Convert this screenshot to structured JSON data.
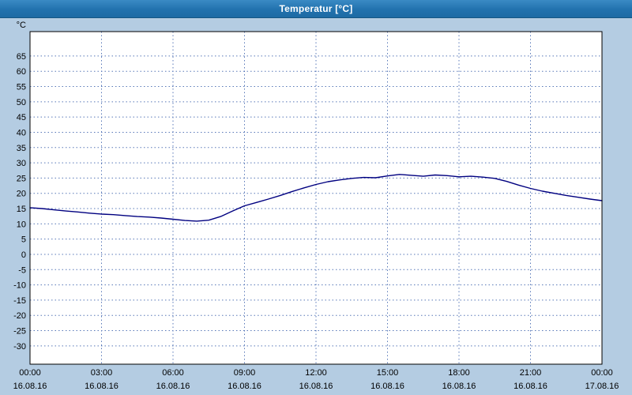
{
  "chart_data": {
    "type": "line",
    "title": "Temperatur [°C]",
    "y_unit": "°C",
    "ylim": [
      -36,
      73
    ],
    "xlim": [
      0,
      24
    ],
    "grid": true,
    "y_ticks": [
      65,
      60,
      55,
      50,
      45,
      40,
      35,
      30,
      25,
      20,
      15,
      10,
      5,
      0,
      -5,
      -10,
      -15,
      -20,
      -25,
      -30
    ],
    "x_ticks": [
      {
        "x": 0,
        "time": "00:00",
        "date": "16.08.16"
      },
      {
        "x": 3,
        "time": "03:00",
        "date": "16.08.16"
      },
      {
        "x": 6,
        "time": "06:00",
        "date": "16.08.16"
      },
      {
        "x": 9,
        "time": "09:00",
        "date": "16.08.16"
      },
      {
        "x": 12,
        "time": "12:00",
        "date": "16.08.16"
      },
      {
        "x": 15,
        "time": "15:00",
        "date": "16.08.16"
      },
      {
        "x": 18,
        "time": "18:00",
        "date": "16.08.16"
      },
      {
        "x": 21,
        "time": "21:00",
        "date": "16.08.16"
      },
      {
        "x": 24,
        "time": "00:00",
        "date": "17.08.16"
      }
    ],
    "series": [
      {
        "name": "Temperatur",
        "color": "#000080",
        "x": [
          0,
          0.5,
          1,
          1.5,
          2,
          2.5,
          3,
          3.5,
          4,
          4.5,
          5,
          5.5,
          6,
          6.5,
          7,
          7.5,
          8,
          8.5,
          9,
          9.5,
          10,
          10.5,
          11,
          11.5,
          12,
          12.5,
          13,
          13.5,
          14,
          14.5,
          15,
          15.5,
          16,
          16.5,
          17,
          17.5,
          18,
          18.5,
          19,
          19.5,
          20,
          20.5,
          21,
          21.5,
          22,
          22.5,
          23,
          23.5,
          24
        ],
        "y": [
          15.3,
          15.0,
          14.6,
          14.2,
          13.9,
          13.5,
          13.2,
          13.0,
          12.7,
          12.4,
          12.2,
          11.9,
          11.5,
          11.1,
          10.9,
          11.2,
          12.4,
          14.2,
          15.9,
          17.0,
          18.1,
          19.3,
          20.6,
          21.8,
          22.9,
          23.8,
          24.4,
          24.9,
          25.2,
          25.1,
          25.7,
          26.2,
          25.9,
          25.6,
          26.0,
          25.8,
          25.4,
          25.6,
          25.3,
          24.9,
          23.9,
          22.7,
          21.6,
          20.7,
          20.0,
          19.3,
          18.7,
          18.1,
          17.6
        ]
      }
    ],
    "colors": {
      "background": "#b4cce2",
      "titlebar": "#2272ae",
      "plot_background": "#ffffff",
      "grid": "#5878b8",
      "line": "#000080",
      "plot_border": "#000000",
      "title_text": "#ffffff"
    }
  }
}
